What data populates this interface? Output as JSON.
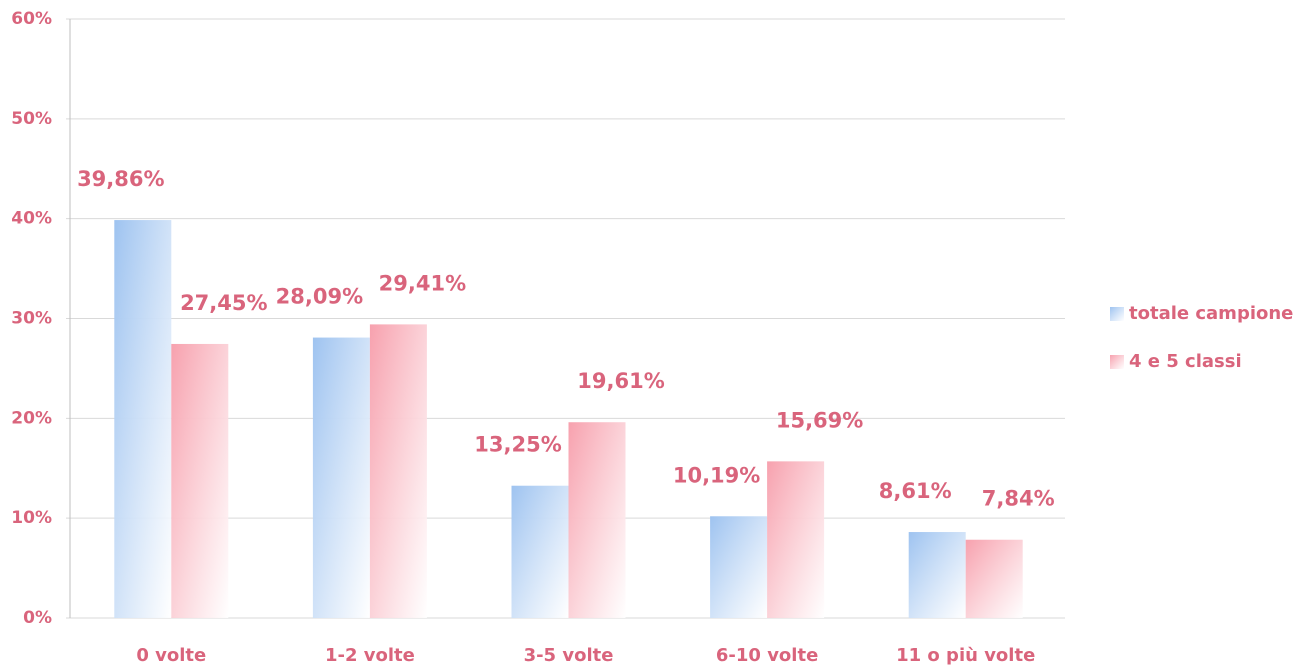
{
  "chart_data": {
    "type": "bar",
    "categories": [
      "0 volte",
      "1-2 volte",
      "3-5 volte",
      "6-10 volte",
      "11 o più volte"
    ],
    "series": [
      {
        "name": "totale campione",
        "color": "#9ec3f0",
        "values": [
          39.86,
          28.09,
          13.25,
          10.19,
          8.61
        ],
        "value_labels": [
          "39,86%",
          "28,09%",
          "13,25%",
          "10,19%",
          "8,61%"
        ]
      },
      {
        "name": "4 e 5 classi",
        "color": "#f7a1ae",
        "values": [
          27.45,
          29.41,
          19.61,
          15.69,
          7.84
        ],
        "value_labels": [
          "27,45%",
          "29,41%",
          "19,61%",
          "15,69%",
          "7,84%"
        ]
      }
    ],
    "ylim": [
      0,
      60
    ],
    "yticks": [
      {
        "value": 0,
        "label": "0%"
      },
      {
        "value": 10,
        "label": "10%"
      },
      {
        "value": 20,
        "label": "20%"
      },
      {
        "value": 30,
        "label": "30%"
      },
      {
        "value": 40,
        "label": "40%"
      },
      {
        "value": 50,
        "label": "50%"
      },
      {
        "value": 60,
        "label": "60%"
      }
    ],
    "grid": true,
    "legend": "right"
  }
}
